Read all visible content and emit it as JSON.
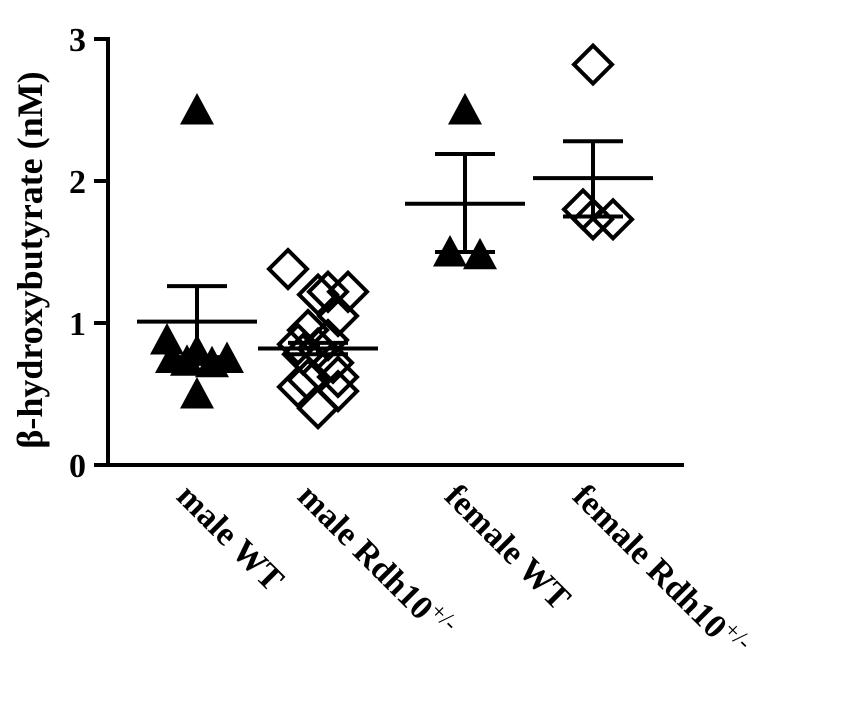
{
  "chart_data": {
    "type": "scatter",
    "ylabel": "β-hydroxybutyrate (nM)",
    "ylim": [
      0,
      3
    ],
    "yticks": [
      0,
      1,
      2,
      3
    ],
    "grid": false,
    "groups": [
      {
        "label": "male WT",
        "superscript": "",
        "marker": "filled-triangle",
        "values": [
          2.5,
          0.88,
          0.8,
          0.75,
          0.72,
          0.73,
          0.75,
          0.5
        ],
        "mean": 1.01,
        "sem_upper": 1.26,
        "sem_lower": 0.76
      },
      {
        "label": "male Rdh10",
        "superscript": "+/-",
        "marker": "open-diamond",
        "values": [
          1.38,
          1.22,
          1.22,
          1.2,
          1.05,
          0.95,
          0.88,
          0.85,
          0.82,
          0.78,
          0.72,
          0.62,
          0.6,
          0.55,
          0.52,
          0.4
        ],
        "mean": 0.82,
        "sem_upper": 0.86,
        "sem_lower": 0.78
      },
      {
        "label": "female WT",
        "superscript": "",
        "marker": "filled-triangle",
        "values": [
          2.5,
          1.5,
          1.48
        ],
        "mean": 1.84,
        "sem_upper": 2.19,
        "sem_lower": 1.5
      },
      {
        "label": "female Rdh10",
        "superscript": "+/-",
        "marker": "open-diamond",
        "values": [
          2.82,
          1.8,
          1.73,
          1.73
        ],
        "mean": 2.02,
        "sem_upper": 2.28,
        "sem_lower": 1.75
      }
    ]
  }
}
